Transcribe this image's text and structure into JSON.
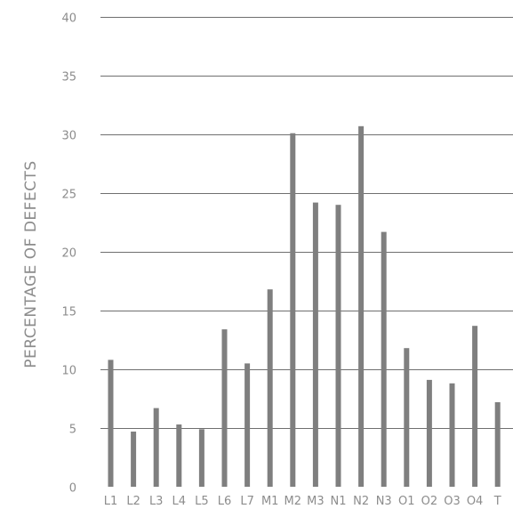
{
  "chart_data": {
    "type": "bar",
    "title": "",
    "xlabel": "",
    "ylabel": "PERCENTAGE OF DEFECTS",
    "ylim": [
      0,
      40
    ],
    "yticks": [
      0,
      5,
      10,
      15,
      20,
      25,
      30,
      35,
      40
    ],
    "grid": true,
    "categories": [
      "L1",
      "L2",
      "L3",
      "L4",
      "L5",
      "L6",
      "L7",
      "M1",
      "M2",
      "M3",
      "N1",
      "N2",
      "N3",
      "O1",
      "O2",
      "O3",
      "O4",
      "T"
    ],
    "values": [
      10.8,
      4.7,
      6.7,
      5.3,
      4.9,
      13.4,
      10.5,
      16.8,
      30.1,
      24.2,
      24.0,
      30.7,
      21.7,
      11.8,
      9.1,
      8.8,
      13.7,
      7.2
    ],
    "bar_color": "#7f7f7f",
    "grid_color": "#6f6f6f",
    "text_color": "#8c8c8c"
  }
}
